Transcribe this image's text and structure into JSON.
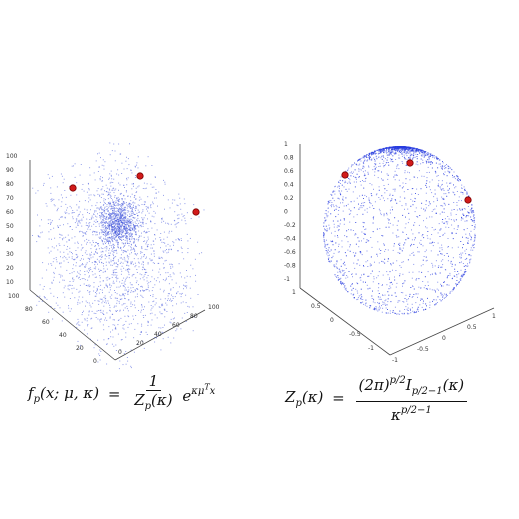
{
  "panels": [
    {
      "name": "cube",
      "axes": {
        "z_ticks": [
          "100",
          "90",
          "80",
          "70",
          "60",
          "50",
          "40",
          "30",
          "20",
          "10"
        ],
        "x_ticks": [
          "100",
          "80",
          "60",
          "40",
          "20",
          "0"
        ],
        "y_ticks": [
          "0",
          "20",
          "40",
          "60",
          "80",
          "100"
        ]
      },
      "points_color": "#3a4fd8",
      "center_color": "#d11a1a",
      "centers": 3
    },
    {
      "name": "sphere",
      "axes": {
        "z_ticks": [
          "1",
          "0.8",
          "0.6",
          "0.4",
          "0.2",
          "0",
          "-0.2",
          "-0.4",
          "-0.6",
          "-0.8",
          "-1"
        ],
        "x_ticks": [
          "1",
          "0.5",
          "0",
          "-0.5",
          "-1"
        ],
        "y_ticks": [
          "-1",
          "-0.5",
          "0",
          "0.5",
          "1"
        ]
      },
      "points_color": "#2a3ee0",
      "center_color": "#d11a1a",
      "centers": 3
    }
  ],
  "formulas": {
    "left": {
      "lhs": "fp(x; μ, κ)",
      "num": "1",
      "den": "Zp(κ)",
      "tail": "eκμᵀx"
    },
    "right": {
      "lhs": "Zp(κ)",
      "num": "(2π)p/2 Ip/2−1(κ)",
      "den": "κp/2−1"
    }
  }
}
